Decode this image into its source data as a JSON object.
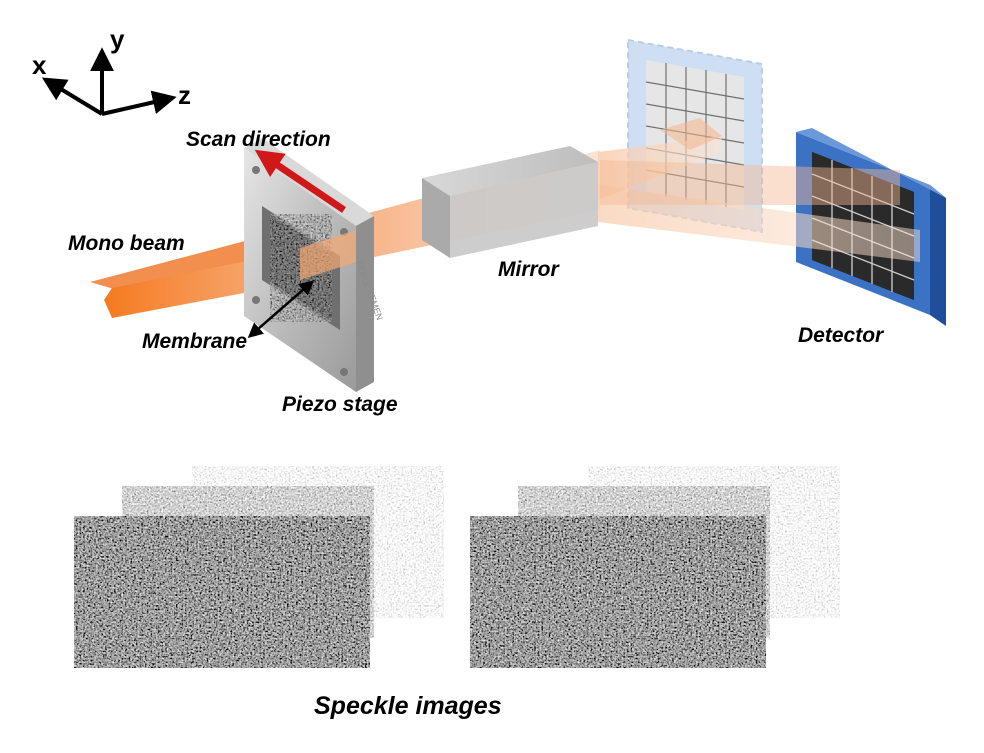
{
  "axes": {
    "x": "x",
    "y": "y",
    "z": "z"
  },
  "labels": {
    "scan_direction": "Scan direction",
    "mono_beam": "Mono beam",
    "membrane": "Membrane",
    "piezo_stage": "Piezo stage",
    "mirror": "Mirror",
    "detector": "Detector",
    "speckle_images": "Speckle images"
  },
  "stage_engraving": "FEBLE FEMEN",
  "colors": {
    "beam": "#f07a2a",
    "scan_arrow": "#d01818",
    "detector_frame": "#2f64b4",
    "ghost_detector": "#a9c6ea",
    "mirror": "#c4c4c4"
  },
  "icons": [
    "xyz-axes-icon",
    "scan-arrow-icon",
    "membrane-arrow-icon"
  ]
}
